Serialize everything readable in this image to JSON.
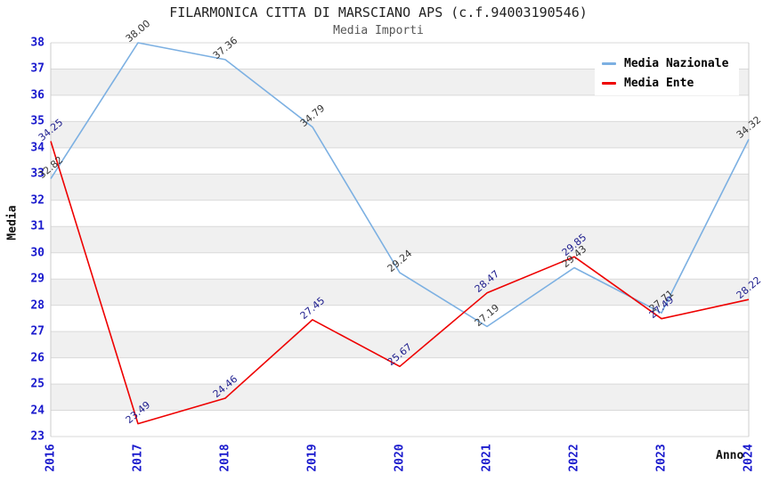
{
  "chart_data": {
    "type": "line",
    "title": "FILARMONICA CITTA DI MARSCIANO APS (c.f.94003190546)",
    "subtitle": "Media Importi",
    "xlabel": "Anno",
    "ylabel": "Media",
    "categories": [
      "2016",
      "2017",
      "2018",
      "2019",
      "2020",
      "2021",
      "2022",
      "2023",
      "2024"
    ],
    "series": [
      {
        "name": "Media Nazionale",
        "color": "#7cb0e2",
        "label_color": "#333333",
        "values": [
          32.82,
          38.0,
          37.36,
          34.79,
          29.24,
          27.19,
          29.43,
          27.71,
          34.32
        ]
      },
      {
        "name": "Media Ente",
        "color": "#ee0000",
        "label_color": "#1a1a8c",
        "values": [
          34.25,
          23.49,
          24.46,
          27.45,
          25.67,
          28.47,
          29.85,
          27.49,
          28.22
        ]
      }
    ],
    "ylim": [
      23,
      38
    ],
    "ytick_step": 1,
    "axis_tick_color": "#1a1acd",
    "band_color": "#f0f0f0",
    "gridline_color": "#d9d9d9",
    "border_color": "#cccccc",
    "grid": "horizontal gridlines with alternating shaded bands",
    "legend_position": "top-right",
    "data_labels": "shown, rotated -40deg, 2 decimals"
  }
}
